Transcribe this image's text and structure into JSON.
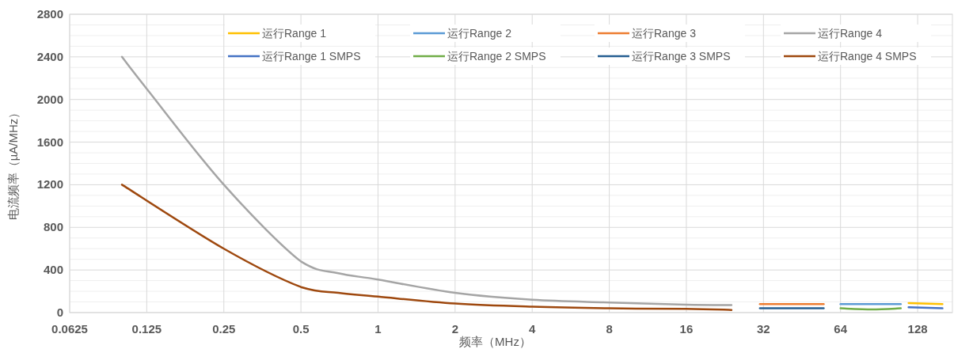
{
  "chart_data": {
    "type": "line",
    "xlabel": "频率（MHz）",
    "ylabel": "电流频率（µA/MHz）",
    "log": "x",
    "grid": true,
    "legend": "top",
    "line_style": "solid",
    "marker": "none",
    "xlim": [
      0.0625,
      175
    ],
    "xticks": [
      0.0625,
      0.125,
      0.25,
      0.5,
      1,
      2,
      4,
      8,
      16,
      32,
      64,
      128
    ],
    "ylim": [
      0,
      2800
    ],
    "yticks": [
      0,
      {
        "value": 100,
        "label": null
      },
      {
        "value": 200,
        "label": null
      },
      {
        "value": 300,
        "label": null
      },
      400,
      {
        "value": 500,
        "label": null
      },
      {
        "value": 600,
        "label": null
      },
      {
        "value": 700,
        "label": null
      },
      800,
      {
        "value": 900,
        "label": null
      },
      {
        "value": 1000,
        "label": null
      },
      {
        "value": 1100,
        "label": null
      },
      1200,
      {
        "value": 1300,
        "label": null
      },
      {
        "value": 1400,
        "label": null
      },
      {
        "value": 1500,
        "label": null
      },
      1600,
      {
        "value": 1700,
        "label": null
      },
      {
        "value": 1800,
        "label": null
      },
      {
        "value": 1900,
        "label": null
      },
      2000,
      {
        "value": 2100,
        "label": null
      },
      {
        "value": 2200,
        "label": null
      },
      {
        "value": 2300,
        "label": null
      },
      2400,
      {
        "value": 2500,
        "label": null
      },
      {
        "value": 2600,
        "label": null
      },
      {
        "value": 2700,
        "label": null
      },
      2800
    ],
    "series": [
      {
        "name": "运行Range 1",
        "color": "#ffc000",
        "x": [
          118,
          160
        ],
        "values": [
          90,
          80
        ]
      },
      {
        "name": "运行Range 2",
        "color": "#5b9bd5",
        "x": [
          64,
          110
        ],
        "values": [
          80,
          80
        ]
      },
      {
        "name": "运行Range 3",
        "color": "#ed7d31",
        "x": [
          31,
          55
        ],
        "values": [
          80,
          80
        ]
      },
      {
        "name": "运行Range 4",
        "color": "#a5a5a5",
        "x": [
          0.1,
          0.125,
          0.25,
          0.5,
          0.7,
          1,
          2,
          4,
          8,
          16,
          24
        ],
        "values": [
          2400,
          2100,
          1200,
          480,
          370,
          310,
          185,
          120,
          95,
          75,
          70
        ]
      },
      {
        "name": "运行Range 1 SMPS",
        "color": "#4472c4",
        "x": [
          118,
          160
        ],
        "values": [
          50,
          40
        ]
      },
      {
        "name": "运行Range 2 SMPS",
        "color": "#70ad47",
        "x": [
          64,
          85,
          110
        ],
        "values": [
          40,
          30,
          40
        ]
      },
      {
        "name": "运行Range 3 SMPS",
        "color": "#255e91",
        "x": [
          31,
          55
        ],
        "values": [
          40,
          40
        ]
      },
      {
        "name": "运行Range 4 SMPS",
        "color": "#9e480e",
        "x": [
          0.1,
          0.25,
          0.5,
          0.7,
          1,
          2,
          4,
          8,
          16,
          24
        ],
        "values": [
          1200,
          600,
          240,
          185,
          150,
          85,
          55,
          40,
          35,
          25
        ]
      }
    ]
  }
}
